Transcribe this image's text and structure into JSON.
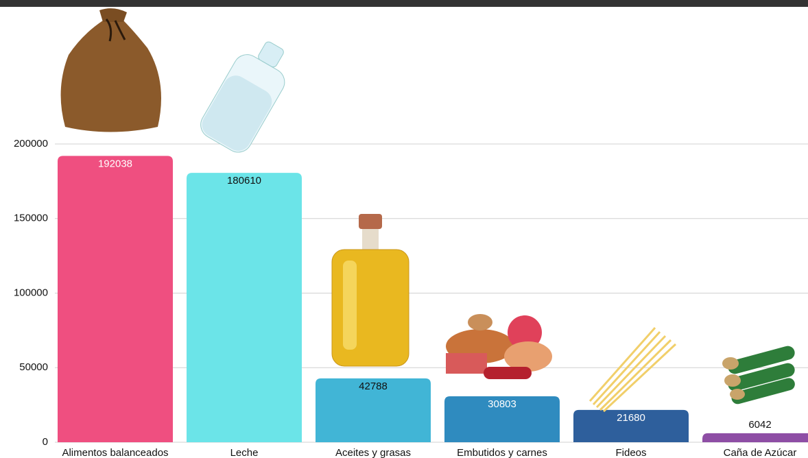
{
  "chart_data": {
    "type": "bar",
    "categories": [
      "Alimentos balanceados",
      "Leche",
      "Aceites y grasas",
      "Embutidos y carnes",
      "Fideos",
      "Caña de Azúcar"
    ],
    "values": [
      192038,
      180610,
      42788,
      30803,
      21680,
      6042
    ],
    "colors": [
      "#ef4f80",
      "#6be4e8",
      "#41b5d6",
      "#2f8bbf",
      "#2e5f9c",
      "#8e4ea5"
    ],
    "label_colors": [
      "#ffffff",
      "#111111",
      "#111111",
      "#ffffff",
      "#ffffff",
      "#111111"
    ],
    "ylim": [
      0,
      200000
    ],
    "yticks": [
      0,
      50000,
      100000,
      150000,
      200000
    ],
    "grid": true
  }
}
